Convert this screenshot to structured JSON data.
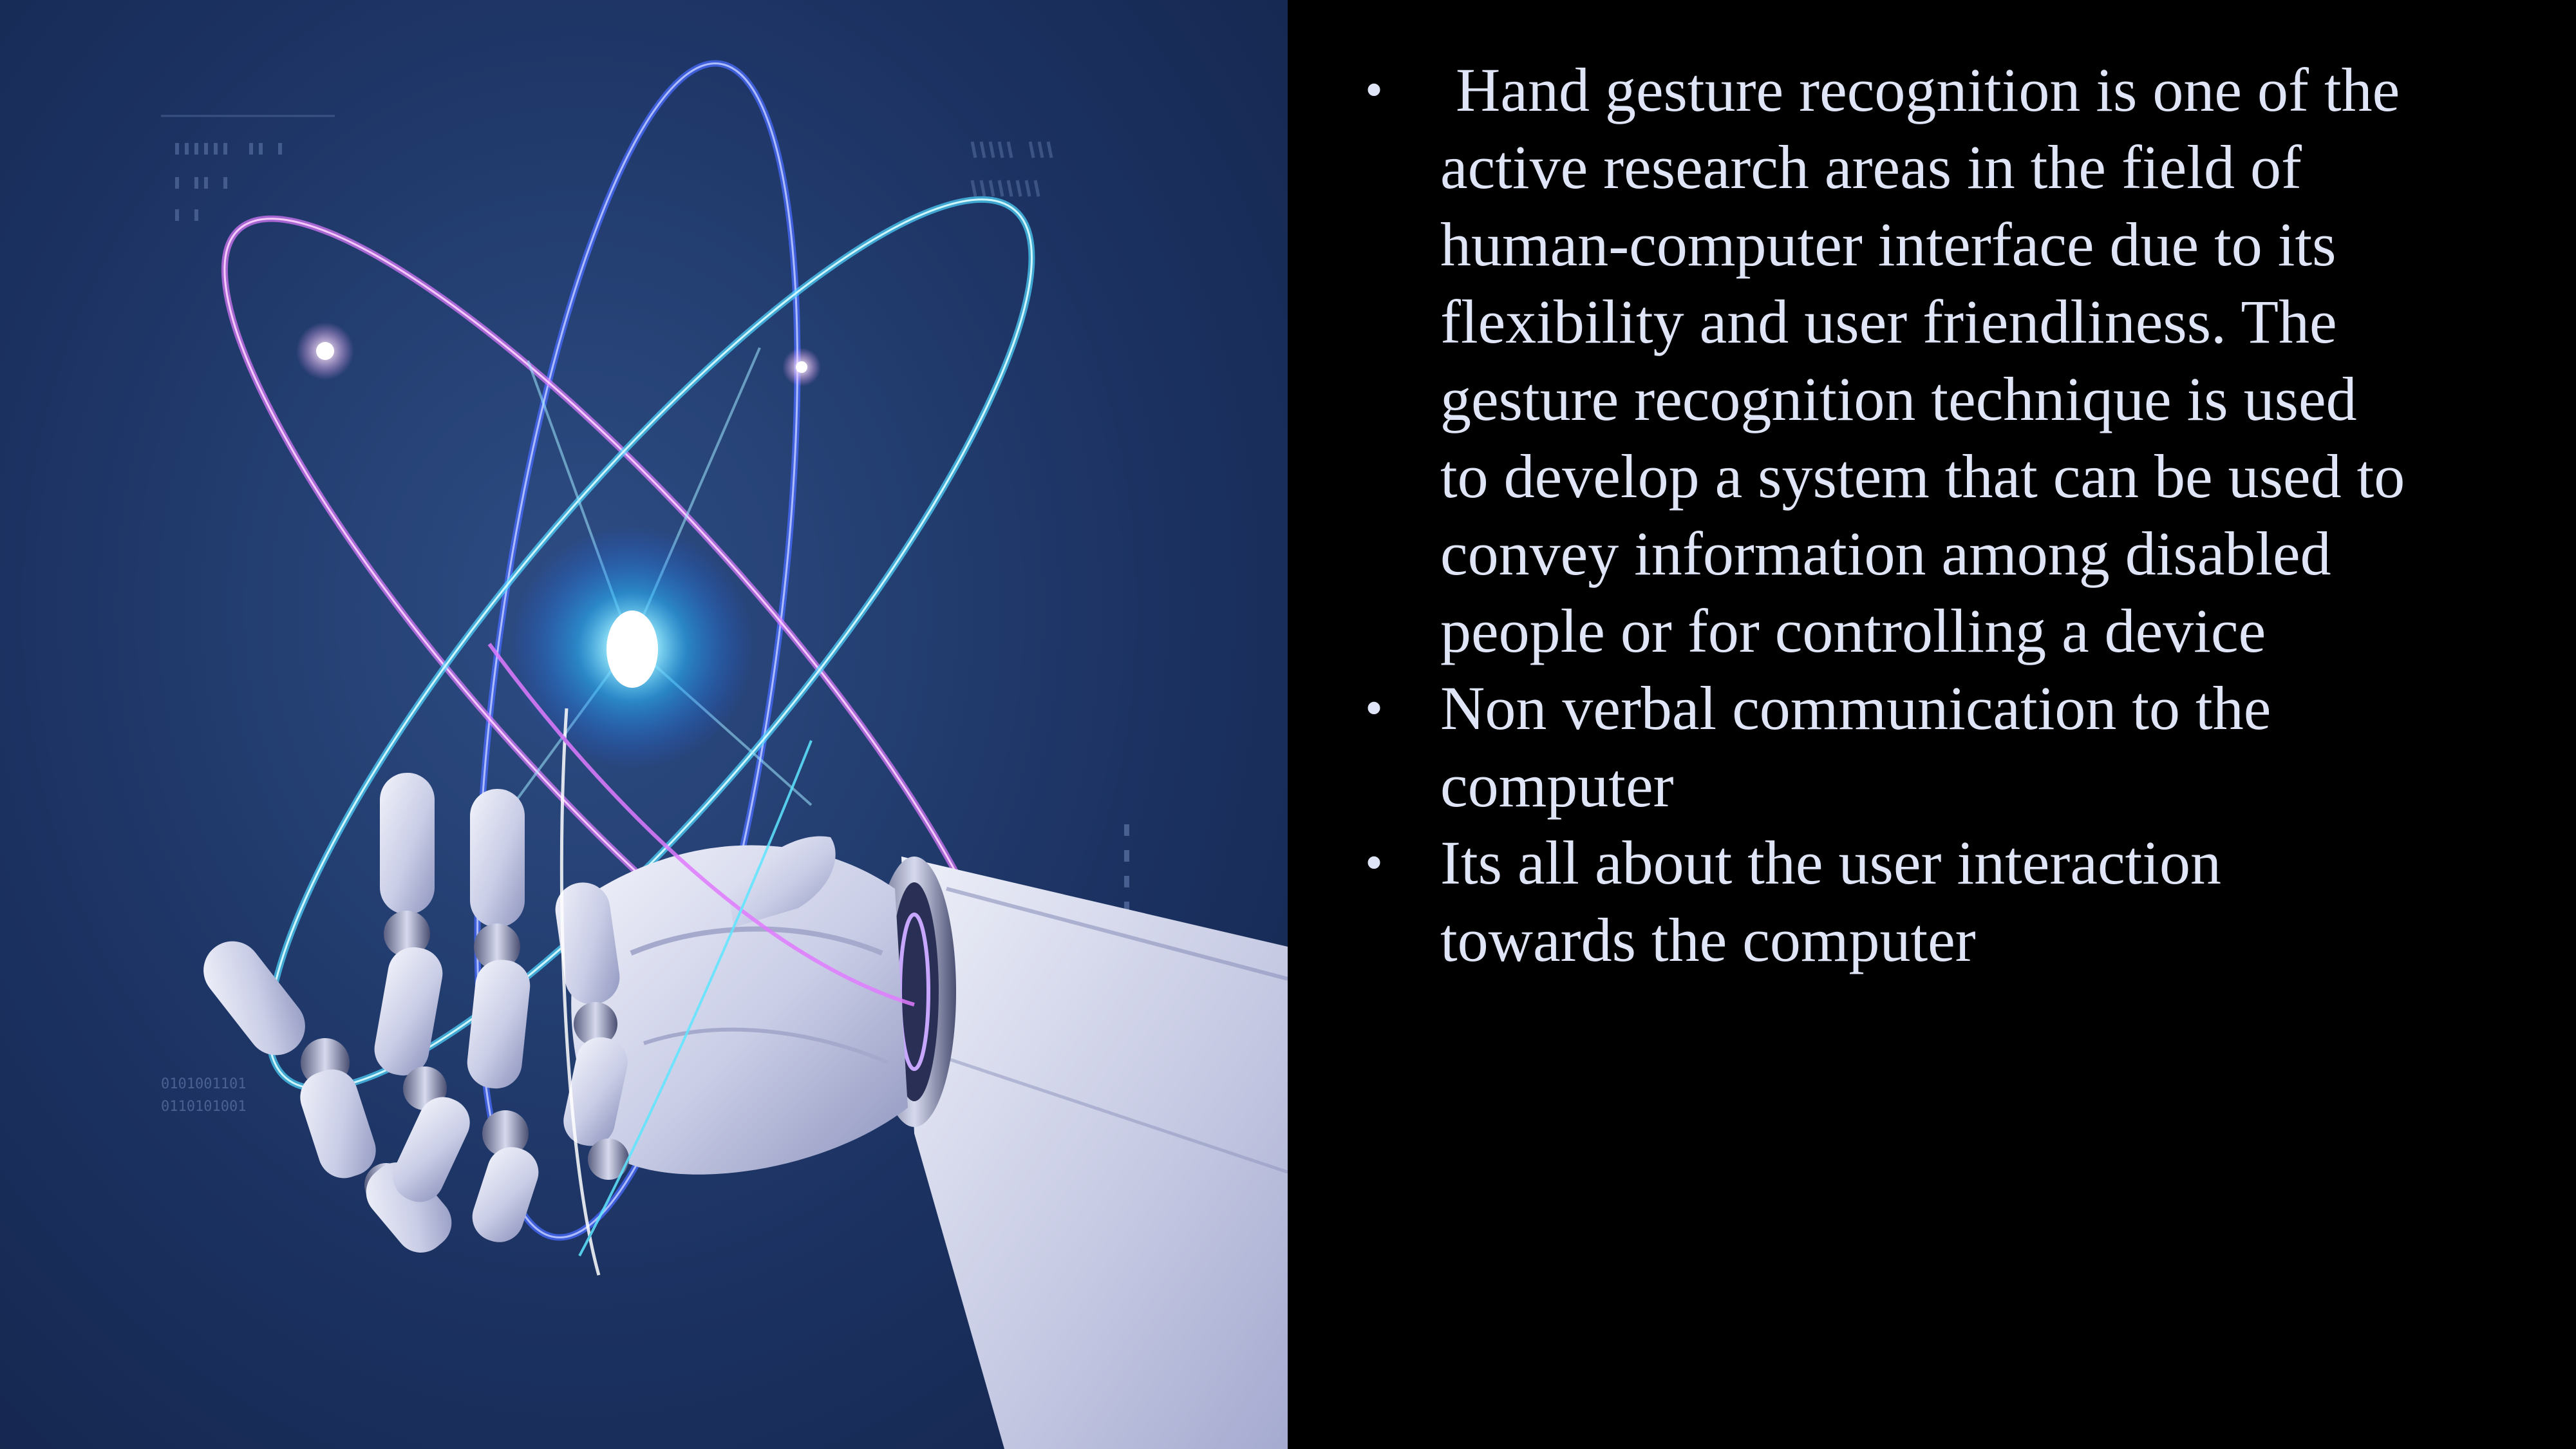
{
  "slide": {
    "image": {
      "alt_icon": "robot-hand-atom-illustration",
      "palette": {
        "background": "#1b3160",
        "glow": "#38c8ff",
        "orbit_pink": "#e07bff",
        "orbit_cyan": "#5fe6ff",
        "orbit_blue": "#4a6bff",
        "hand": "#d9dcef"
      },
      "binary_lines": [
        "0101001101",
        "0110101001"
      ]
    },
    "bullet_symbol": "•",
    "bullets": [
      " Hand gesture recognition is one of the active research areas in the field of human-computer interface due to its flexibility and user friendliness. The gesture recognition technique is used to develop a system that can be used to convey information among disabled people or for controlling a device",
      "Non verbal communication to the computer",
      "Its all about the user interaction towards the computer"
    ],
    "colors": {
      "text": "#dfe5f6",
      "panel_background": "#000000"
    }
  }
}
